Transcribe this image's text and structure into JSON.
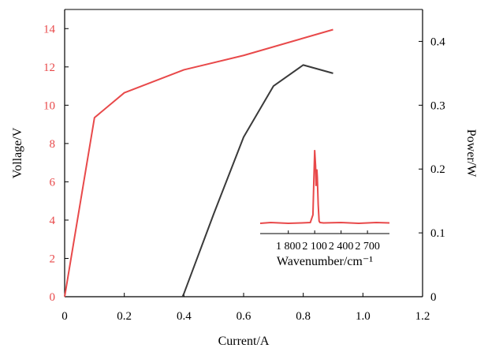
{
  "chart_data": [
    {
      "type": "line",
      "xlabel": "Current/A",
      "ylabel": "Vollage/V",
      "y2label": "Power/W",
      "xlim": [
        0,
        1.2
      ],
      "ylim": [
        0,
        15
      ],
      "y2lim": [
        0,
        0.45
      ],
      "x_ticks": [
        "0",
        "0.2",
        "0.4",
        "0.6",
        "0.8",
        "1.0",
        "1.2"
      ],
      "y_ticks": [
        "0",
        "2",
        "4",
        "6",
        "8",
        "10",
        "12",
        "14"
      ],
      "y2_ticks": [
        "0",
        "0.1",
        "0.2",
        "0.3",
        "0.4"
      ],
      "grid": false,
      "series": [
        {
          "axis": "left",
          "color": "#e8494a",
          "x": [
            0,
            0.1,
            0.2,
            0.4,
            0.6,
            0.9
          ],
          "y": [
            0,
            9.35,
            10.65,
            11.85,
            12.6,
            13.95
          ]
        },
        {
          "axis": "right",
          "color": "#3a3a3a",
          "x": [
            0.395,
            0.4,
            0.5,
            0.6,
            0.7,
            0.8,
            0.9
          ],
          "y": [
            0,
            0.005,
            0.13,
            0.25,
            0.33,
            0.363,
            0.35
          ]
        }
      ],
      "left_axis_color": "#e8494a",
      "right_axis_color": "#000000"
    },
    {
      "type": "line",
      "role": "inset",
      "xlabel": "Wavenumber/cm⁻¹",
      "x_ticks": [
        "1 800",
        "2 100",
        "2 400",
        "2 700"
      ],
      "xlim": [
        1480,
        2950
      ],
      "color": "#e8494a",
      "grid": false,
      "series": [
        {
          "x": [
            1480,
            1600,
            1800,
            1950,
            2050,
            2080,
            2090,
            2100,
            2110,
            2115,
            2125,
            2130,
            2140,
            2150,
            2160,
            2200,
            2400,
            2600,
            2800,
            2950
          ],
          "y": [
            0.01,
            0.02,
            0.01,
            0.015,
            0.02,
            0.12,
            0.55,
            0.95,
            0.75,
            0.5,
            0.7,
            0.6,
            0.25,
            0.04,
            0.02,
            0.015,
            0.02,
            0.01,
            0.02,
            0.015
          ]
        }
      ]
    }
  ]
}
